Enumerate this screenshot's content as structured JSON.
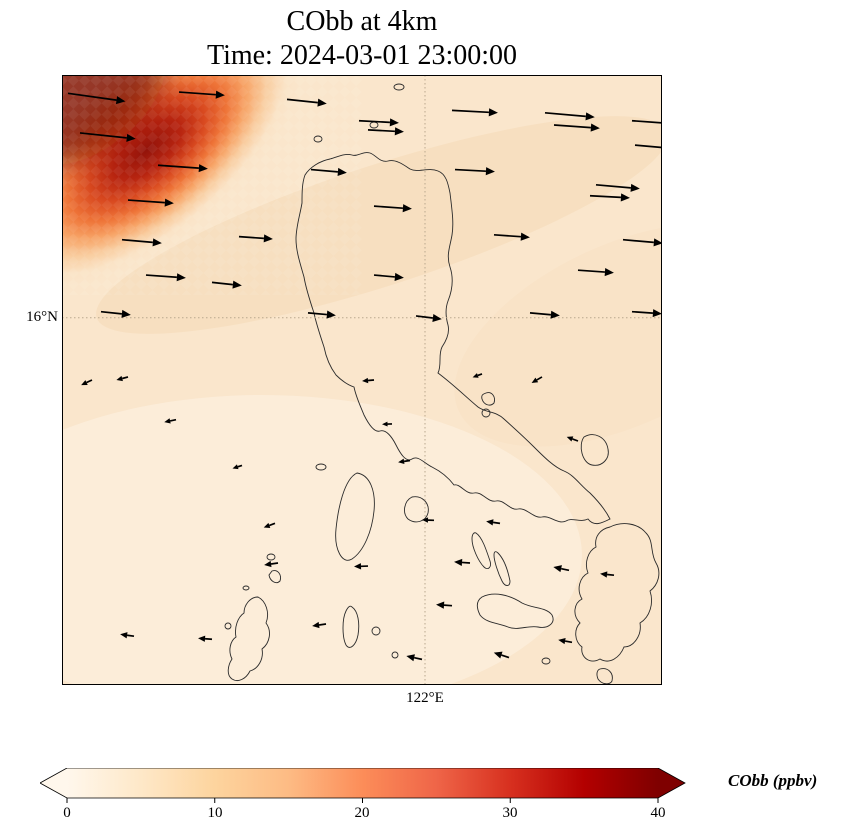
{
  "title": {
    "line1": "CObb at 4km",
    "line2": "Time: 2024-03-01 23:00:00"
  },
  "axes": {
    "ytick": "16°N",
    "xtick": "122°E"
  },
  "colorbar": {
    "label": "CObb (ppbv)",
    "ticks": [
      "0",
      "10",
      "20",
      "30",
      "40"
    ],
    "min": 0,
    "max": 40,
    "colors": [
      "#fff7ec",
      "#fee8c8",
      "#fdd49e",
      "#fdbb84",
      "#fc8d59",
      "#ef6548",
      "#d7301f",
      "#b30000",
      "#7f0000"
    ]
  },
  "chart_data": {
    "type": "heatmap",
    "title": "CObb at 4km",
    "time": "2024-03-01 23:00:00",
    "variable": "CObb",
    "level": "4km",
    "units": "ppbv",
    "colormap": "OrRd",
    "value_range": [
      0,
      40
    ],
    "colorbar_ticks": [
      0,
      10,
      20,
      30,
      40
    ],
    "colorbar_extend": "both",
    "map": {
      "lat_label": "16°N",
      "lon_label": "122°E",
      "lat_frac": 0.398,
      "lon_frac": 0.605,
      "gridlines": "dotted"
    },
    "field_summary": {
      "background_ppbv": 5,
      "plume_max_ppbv": 40,
      "plume_location": "northwest corner",
      "plume_shape": "elongated diagonal band NE-SW"
    },
    "wind_vectors": [
      {
        "x": 0.01,
        "y": 0.03,
        "a": -8,
        "l": 58
      },
      {
        "x": 0.195,
        "y": 0.028,
        "a": -4,
        "l": 46
      },
      {
        "x": 0.375,
        "y": 0.04,
        "a": -6,
        "l": 40
      },
      {
        "x": 0.495,
        "y": 0.075,
        "a": -3,
        "l": 40
      },
      {
        "x": 0.65,
        "y": 0.058,
        "a": -3,
        "l": 46
      },
      {
        "x": 0.805,
        "y": 0.062,
        "a": -5,
        "l": 50
      },
      {
        "x": 0.95,
        "y": 0.075,
        "a": -4,
        "l": 42
      },
      {
        "x": 0.03,
        "y": 0.095,
        "a": -6,
        "l": 56
      },
      {
        "x": 0.51,
        "y": 0.09,
        "a": -3,
        "l": 36
      },
      {
        "x": 0.82,
        "y": 0.082,
        "a": -4,
        "l": 46
      },
      {
        "x": 0.955,
        "y": 0.115,
        "a": -5,
        "l": 40
      },
      {
        "x": 0.16,
        "y": 0.148,
        "a": -4,
        "l": 50
      },
      {
        "x": 0.415,
        "y": 0.155,
        "a": -5,
        "l": 36
      },
      {
        "x": 0.655,
        "y": 0.155,
        "a": -3,
        "l": 40
      },
      {
        "x": 0.89,
        "y": 0.18,
        "a": -5,
        "l": 44
      },
      {
        "x": 0.11,
        "y": 0.205,
        "a": -4,
        "l": 46
      },
      {
        "x": 0.52,
        "y": 0.215,
        "a": -4,
        "l": 38
      },
      {
        "x": 0.88,
        "y": 0.198,
        "a": -3,
        "l": 40
      },
      {
        "x": 0.1,
        "y": 0.27,
        "a": -5,
        "l": 40
      },
      {
        "x": 0.295,
        "y": 0.265,
        "a": -4,
        "l": 34
      },
      {
        "x": 0.72,
        "y": 0.262,
        "a": -4,
        "l": 36
      },
      {
        "x": 0.935,
        "y": 0.27,
        "a": -5,
        "l": 40
      },
      {
        "x": 0.14,
        "y": 0.328,
        "a": -4,
        "l": 40
      },
      {
        "x": 0.25,
        "y": 0.34,
        "a": -6,
        "l": 30
      },
      {
        "x": 0.52,
        "y": 0.328,
        "a": -5,
        "l": 30
      },
      {
        "x": 0.86,
        "y": 0.32,
        "a": -4,
        "l": 36
      },
      {
        "x": 0.065,
        "y": 0.388,
        "a": -6,
        "l": 30
      },
      {
        "x": 0.41,
        "y": 0.39,
        "a": -5,
        "l": 28
      },
      {
        "x": 0.59,
        "y": 0.395,
        "a": -7,
        "l": 26
      },
      {
        "x": 0.78,
        "y": 0.39,
        "a": -5,
        "l": 30
      },
      {
        "x": 0.95,
        "y": 0.388,
        "a": -4,
        "l": 30
      },
      {
        "x": 0.05,
        "y": 0.5,
        "a": -155,
        "l": 12
      },
      {
        "x": 0.11,
        "y": 0.495,
        "a": -165,
        "l": 12
      },
      {
        "x": 0.52,
        "y": 0.5,
        "a": -175,
        "l": 12
      },
      {
        "x": 0.7,
        "y": 0.49,
        "a": -160,
        "l": 10
      },
      {
        "x": 0.8,
        "y": 0.495,
        "a": -150,
        "l": 12
      },
      {
        "x": 0.19,
        "y": 0.565,
        "a": -168,
        "l": 12
      },
      {
        "x": 0.55,
        "y": 0.572,
        "a": -178,
        "l": 10
      },
      {
        "x": 0.3,
        "y": 0.64,
        "a": -162,
        "l": 10
      },
      {
        "x": 0.58,
        "y": 0.632,
        "a": -172,
        "l": 12
      },
      {
        "x": 0.86,
        "y": 0.6,
        "a": 160,
        "l": 12
      },
      {
        "x": 0.355,
        "y": 0.735,
        "a": -160,
        "l": 12
      },
      {
        "x": 0.62,
        "y": 0.73,
        "a": 178,
        "l": 12
      },
      {
        "x": 0.73,
        "y": 0.735,
        "a": 172,
        "l": 14
      },
      {
        "x": 0.36,
        "y": 0.8,
        "a": -172,
        "l": 14
      },
      {
        "x": 0.51,
        "y": 0.805,
        "a": -178,
        "l": 14
      },
      {
        "x": 0.68,
        "y": 0.8,
        "a": 176,
        "l": 16
      },
      {
        "x": 0.845,
        "y": 0.812,
        "a": 168,
        "l": 16
      },
      {
        "x": 0.92,
        "y": 0.82,
        "a": 174,
        "l": 14
      },
      {
        "x": 0.12,
        "y": 0.92,
        "a": 172,
        "l": 14
      },
      {
        "x": 0.25,
        "y": 0.925,
        "a": 176,
        "l": 14
      },
      {
        "x": 0.44,
        "y": 0.9,
        "a": -172,
        "l": 14
      },
      {
        "x": 0.65,
        "y": 0.87,
        "a": 176,
        "l": 16
      },
      {
        "x": 0.745,
        "y": 0.955,
        "a": 162,
        "l": 16
      },
      {
        "x": 0.85,
        "y": 0.93,
        "a": 170,
        "l": 14
      },
      {
        "x": 0.6,
        "y": 0.958,
        "a": 168,
        "l": 16
      }
    ],
    "coastlines": [
      "M243,100 C248,92 258,86 268,84 C276,82 282,78 290,80 C296,82 300,76 308,78 C314,80 318,88 326,86 C334,84 342,90 348,94 C356,98 366,92 376,96 C384,99 386,108 388,118 C390,135 392,148 390,160 C388,172 384,180 388,192 C392,204 390,216 386,226 C383,234 384,243 386,250 C388,258 384,266 380,272 C376,280 380,290 376,298 C392,310 404,322 416,332 C424,338 434,336 442,344 C452,353 462,362 472,372 C482,382 492,392 502,396 C512,400 518,410 528,418 C536,426 544,436 548,444 C540,448 532,452 526,444 C518,448 510,442 504,446 C496,450 488,440 480,442 C472,444 464,432 456,434 C448,436 442,424 434,426 C426,428 420,416 412,418 C404,420 398,408 392,410 C386,402 378,396 370,392 C362,388 356,380 350,384 C344,388 338,378 334,370 C330,362 324,354 318,356 C312,358 306,348 302,340 C298,330 294,322 292,312 C286,310 280,306 274,300 C268,292 264,282 262,272 C258,260 254,248 252,238 C248,226 244,214 242,202 C238,188 234,176 234,164 C234,152 238,140 240,128 C240,118 240,108 243,100 Z",
      "M295,398 C308,400 314,416 312,436 C310,456 302,476 290,484 C280,490 272,474 274,454 C276,434 282,404 295,398 Z",
      "M350,422 C360,420 368,428 366,438 C364,446 354,450 346,444 C340,438 342,426 350,422 Z",
      "M522,362 C532,356 544,362 546,374 C548,384 540,392 530,390 C520,388 516,370 522,362 Z",
      "M424,318 C430,316 434,322 432,328 C428,332 422,330 420,324 C419,320 421,319 424,318 Z",
      "M420,338 a4,4 0 1,0 8,0 a4,4 0 1,0 -8,0",
      "M332,12 a5,3 0 1,0 10,0 a5,3 0 1,0 -10,0",
      "M308,50 a4,3 0 1,0 8,0 a4,3 0 1,0 -8,0",
      "M252,64 a4,3 0 1,0 8,0 a4,3 0 1,0 -8,0",
      "M414,458 C420,462 424,474 428,486 C430,492 426,496 422,492 C416,486 410,472 410,464 C410,459 412,457 414,458 Z",
      "M436,478 C442,484 446,496 448,506 C448,512 443,512 440,506 C436,498 432,486 432,480 C432,476 434,476 436,478 Z",
      "M420,522 C432,516 448,520 460,528 C472,534 484,532 490,540 C494,548 486,554 476,552 C466,550 456,556 446,552 C436,548 424,548 418,540 C414,532 414,526 420,522 Z",
      "M548,452 C560,446 576,448 584,458 C592,466 588,478 594,488 C600,498 596,510 588,516 C592,528 588,542 578,548 C580,560 572,572 562,572 C558,582 548,590 538,584 C528,590 518,582 520,572 C512,566 512,554 518,548 C510,540 512,528 520,524 C514,514 518,502 526,498 C522,488 526,476 534,472 C532,462 538,454 548,452 Z",
      "M538,594 C546,592 552,598 550,606 C548,610 540,610 536,604 C534,599 535,595 538,594 Z",
      "M480,586 a4,3 0 1,0 8,0 a4,3 0 1,0 -8,0",
      "M196,522 C204,526 208,538 204,548 C210,556 208,568 200,574 C202,584 196,594 188,596 C184,604 176,608 170,604 C164,600 166,590 170,584 C166,576 168,566 174,562 C172,552 176,542 182,538 C182,530 188,522 196,522 Z",
      "M163,551 a3,3 0 1,0 6,0 a3,3 0 1,0 -6,0",
      "M181,513 a3,2 0 1,0 6,0 a3,2 0 1,0 -6,0",
      "M290,532 C296,536 298,548 296,560 C294,570 288,576 284,570 C280,562 280,544 284,536 C286,532 288,530 290,532 Z",
      "M310,556 a4,4 0 1,0 8,0 a4,4 0 1,0 -8,0",
      "M330,580 a3,3 0 1,0 6,0 a3,3 0 1,0 -6,0",
      "M205,482 a4,3 0 1,0 8,0 a4,3 0 1,0 -8,0",
      "M210,496 C216,494 220,500 218,506 C214,510 208,506 207,500 Z",
      "M254,392 a5,3 0 1,0 10,0 a5,3 0 1,0 -10,0"
    ]
  }
}
